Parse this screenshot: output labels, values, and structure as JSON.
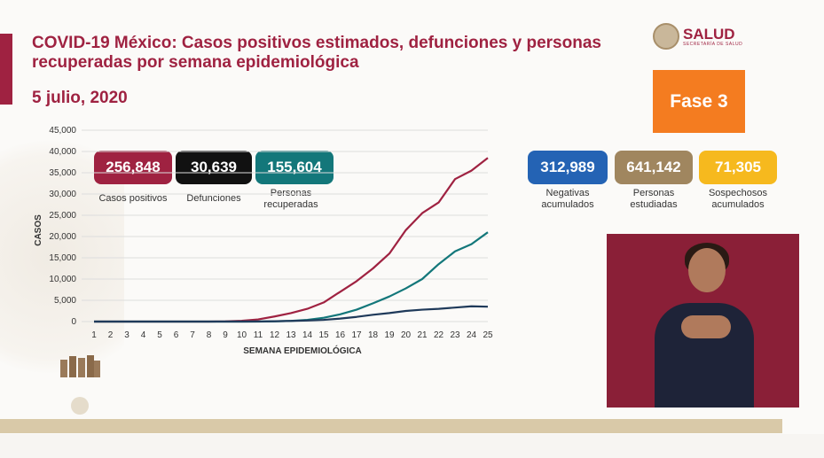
{
  "header": {
    "title": "COVID-19 México: Casos positivos estimados, defunciones y personas recuperadas por semana epidemiológica",
    "date": "5 julio, 2020",
    "brand": "SALUD",
    "brand_sub": "SECRETARÍA DE SALUD",
    "phase": "Fase 3"
  },
  "stats": [
    {
      "value": "256,848",
      "label": "Casos positivos",
      "color": "#9f2241"
    },
    {
      "value": "30,639",
      "label": "Defunciones",
      "color": "#111111"
    },
    {
      "value": "155,604",
      "label": "Personas recuperadas",
      "color": "#13777a"
    },
    {
      "value": "312,989",
      "label": "Negativas acumulados",
      "color": "#2463b4"
    },
    {
      "value": "641,142",
      "label": "Personas estudiadas",
      "color": "#a0865f"
    },
    {
      "value": "71,305",
      "label": "Sospechosos acumulados",
      "color": "#f6b91e"
    }
  ],
  "chart_data": {
    "type": "line",
    "xlabel": "SEMANA EPIDEMIOLÓGICA",
    "ylabel": "CASOS",
    "ylim": [
      0,
      45000
    ],
    "yticks": [
      "0",
      "5,000",
      "10,000",
      "15,000",
      "20,000",
      "25,000",
      "30,000",
      "35,000",
      "40,000",
      "45,000"
    ],
    "x": [
      1,
      2,
      3,
      4,
      5,
      6,
      7,
      8,
      9,
      10,
      11,
      12,
      13,
      14,
      15,
      16,
      17,
      18,
      19,
      20,
      21,
      22,
      23,
      24,
      25
    ],
    "grid": true,
    "series": [
      {
        "color": "#9f2241",
        "values": [
          0,
          0,
          0,
          0,
          0,
          0,
          0,
          0,
          50,
          200,
          500,
          1200,
          2000,
          3000,
          4500,
          7000,
          9500,
          12500,
          16000,
          21500,
          25500,
          28000,
          33500,
          35500,
          38500
        ]
      },
      {
        "color": "#13777a",
        "values": [
          0,
          0,
          0,
          0,
          0,
          0,
          0,
          0,
          0,
          0,
          0,
          50,
          150,
          400,
          900,
          1700,
          2800,
          4300,
          5900,
          7800,
          10000,
          13500,
          16500,
          18200,
          21000
        ]
      },
      {
        "color": "#1f3a5a",
        "values": [
          0,
          0,
          0,
          0,
          0,
          0,
          0,
          0,
          0,
          0,
          30,
          80,
          150,
          250,
          400,
          700,
          1100,
          1600,
          2000,
          2500,
          2800,
          3000,
          3300,
          3600,
          3500
        ]
      }
    ]
  }
}
